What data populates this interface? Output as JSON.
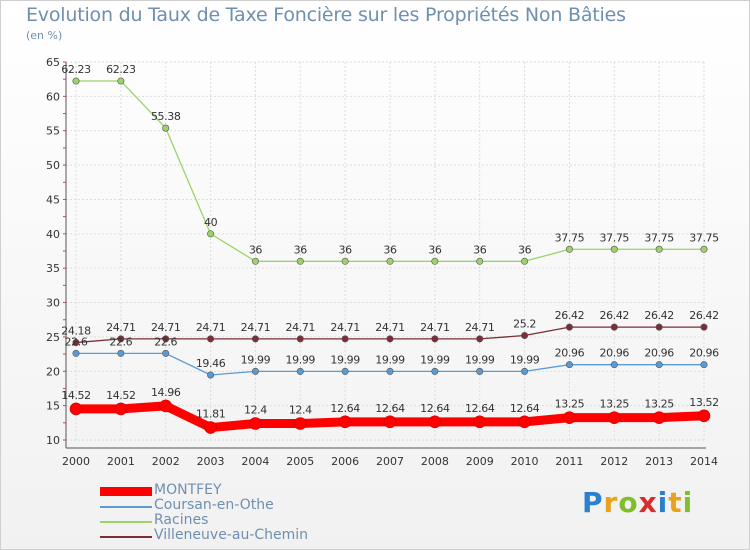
{
  "header": {
    "title": "Evolution du Taux de Taxe Foncière sur les Propriétés Non Bâties",
    "unit": "(en %)"
  },
  "logo": {
    "letters": [
      "P",
      "r",
      "o",
      "x",
      "i",
      "t",
      "i"
    ],
    "colors": [
      "#2a7fd0",
      "#e9a21b",
      "#7fbf2a",
      "#d62d2d",
      "#2a7fd0",
      "#e9a21b",
      "#7fbf2a"
    ]
  },
  "chart_data": {
    "type": "line",
    "title": "Evolution du Taux de Taxe Foncière sur les Propriétés Non Bâties",
    "ylabel": "(en %)",
    "xlabel": "",
    "x": [
      "2000",
      "2001",
      "2002",
      "2003",
      "2004",
      "2005",
      "2006",
      "2007",
      "2008",
      "2009",
      "2010",
      "2011",
      "2012",
      "2013",
      "2014"
    ],
    "ylim": [
      10,
      65
    ],
    "yticks": [
      "10",
      "15",
      "20",
      "25",
      "30",
      "35",
      "40",
      "45",
      "50",
      "55",
      "60",
      "65"
    ],
    "grid": true,
    "legend": "bottom-left",
    "series": [
      {
        "name": "MONTFEY",
        "color": "#ff0000",
        "values": [
          14.52,
          14.52,
          14.96,
          11.81,
          12.4,
          12.4,
          12.64,
          12.64,
          12.64,
          12.64,
          12.64,
          13.25,
          13.25,
          13.25,
          13.52
        ],
        "labels": [
          "14.52",
          "14.52",
          "14.96",
          "11.81",
          "12.4",
          "12.4",
          "12.64",
          "12.64",
          "12.64",
          "12.64",
          "12.64",
          "13.25",
          "13.25",
          "13.25",
          "13.52"
        ]
      },
      {
        "name": "Coursan-en-Othe",
        "color": "#5b9bd5",
        "values": [
          22.6,
          22.6,
          22.6,
          19.46,
          19.99,
          19.99,
          19.99,
          19.99,
          19.99,
          19.99,
          19.99,
          20.96,
          20.96,
          20.96,
          20.96
        ],
        "labels": [
          "22.6",
          "22.6",
          "22.6",
          "19.46",
          "19.99",
          "19.99",
          "19.99",
          "19.99",
          "19.99",
          "19.99",
          "19.99",
          "20.96",
          "20.96",
          "20.96",
          "20.96"
        ]
      },
      {
        "name": "Racines",
        "color": "#9ad468",
        "values": [
          62.23,
          62.23,
          55.38,
          40,
          36,
          36,
          36,
          36,
          36,
          36,
          36,
          37.75,
          37.75,
          37.75,
          37.75
        ],
        "labels": [
          "62.23",
          "62.23",
          "55.38",
          "40",
          "36",
          "36",
          "36",
          "36",
          "36",
          "36",
          "36",
          "37.75",
          "37.75",
          "37.75",
          "37.75"
        ]
      },
      {
        "name": "Villeneuve-au-Chemin",
        "color": "#7a2e36",
        "values": [
          24.18,
          24.71,
          24.71,
          24.71,
          24.71,
          24.71,
          24.71,
          24.71,
          24.71,
          24.71,
          25.2,
          26.42,
          26.42,
          26.42,
          26.42
        ],
        "labels": [
          "24.18",
          "24.71",
          "24.71",
          "24.71",
          "24.71",
          "24.71",
          "24.71",
          "24.71",
          "24.71",
          "24.71",
          "25.2",
          "26.42",
          "26.42",
          "26.42",
          "26.42"
        ]
      }
    ]
  }
}
